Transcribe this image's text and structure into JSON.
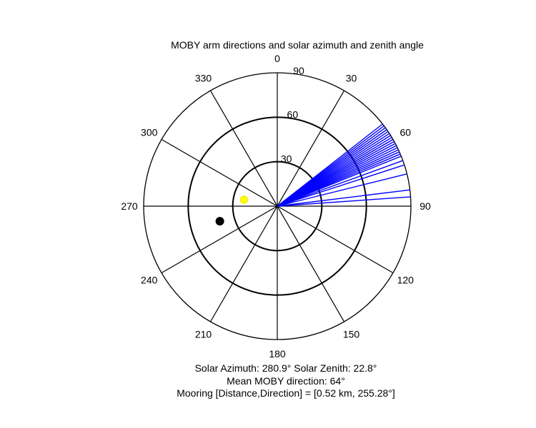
{
  "chart_data": {
    "type": "polar",
    "title": "MOBY arm directions and solar azimuth and zenith angle",
    "angle_ticks": [
      "0",
      "30",
      "60",
      "90",
      "120",
      "150",
      "180",
      "210",
      "240",
      "270",
      "300",
      "330"
    ],
    "radial_ticks": [
      "30",
      "60",
      "90"
    ],
    "radial_max": 90,
    "angle_zero": "north",
    "angle_direction": "clockwise",
    "series": [
      {
        "kind": "radial-lines",
        "color": "#0000ff",
        "directions_deg": [
          52,
          53,
          54,
          55,
          56,
          57,
          58,
          59,
          60,
          61,
          62,
          63,
          64,
          65,
          66,
          67,
          68,
          70,
          72,
          76,
          83,
          86
        ],
        "length": 90
      },
      {
        "kind": "point",
        "label": "solar",
        "marker": "star",
        "color": "#ffff00",
        "azimuth_deg": 280.9,
        "zenith_deg": 22.8
      },
      {
        "kind": "point",
        "label": "mooring",
        "marker": "circle",
        "color": "#000000",
        "direction_deg": 255.28,
        "distance_km": 0.52,
        "radius": 40
      }
    ]
  },
  "captions": {
    "solar": "Solar Azimuth: 280.9°   Solar Zenith: 22.8°",
    "mean": "Mean MOBY direction: 64°",
    "mooring": "Mooring [Distance,Direction] = [0.52 km, 255.28°]"
  }
}
